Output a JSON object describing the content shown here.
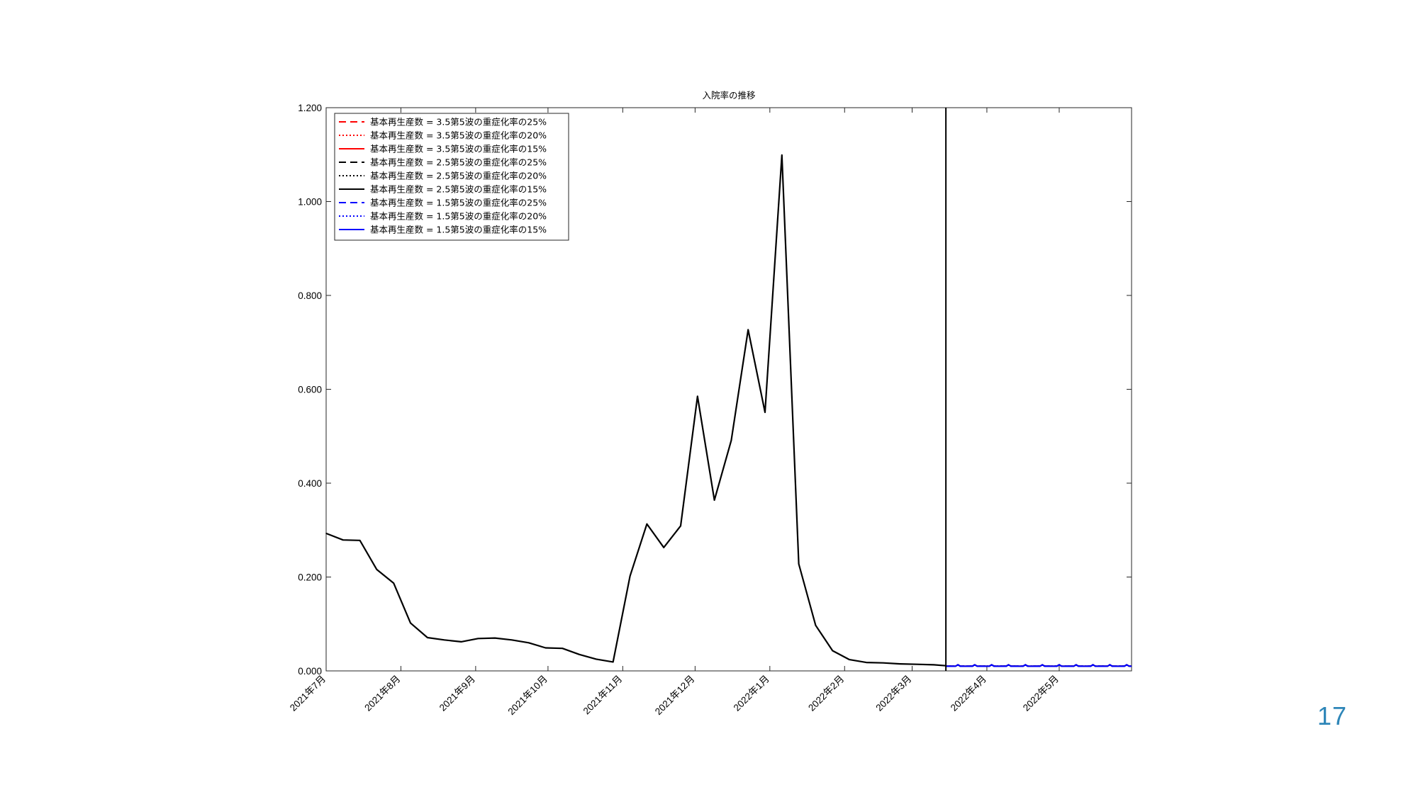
{
  "page": {
    "number": "17"
  },
  "chart_data": {
    "type": "line",
    "title": "入院率の推移",
    "xlabel": "",
    "ylabel": "",
    "ylim": [
      0,
      1.2
    ],
    "x_range": [
      "2021-07-01",
      "2022-05-31"
    ],
    "y_ticks": [
      "0.000",
      "0.200",
      "0.400",
      "0.600",
      "0.800",
      "1.000",
      "1.200"
    ],
    "x_ticks": [
      {
        "date": "2021-07-01",
        "label": "2021年7月"
      },
      {
        "date": "2021-08-01",
        "label": "2021年8月"
      },
      {
        "date": "2021-09-01",
        "label": "2021年9月"
      },
      {
        "date": "2021-10-01",
        "label": "2021年10月"
      },
      {
        "date": "2021-11-01",
        "label": "2021年11月"
      },
      {
        "date": "2021-12-01",
        "label": "2021年12月"
      },
      {
        "date": "2022-01-01",
        "label": "2022年1月"
      },
      {
        "date": "2022-02-01",
        "label": "2022年2月"
      },
      {
        "date": "2022-03-01",
        "label": "2022年3月"
      },
      {
        "date": "2022-04-01",
        "label": "2022年4月"
      },
      {
        "date": "2022-05-01",
        "label": "2022年5月"
      }
    ],
    "vertical_line_date": "2022-03-15",
    "legend_placement": "top-left",
    "grid": false,
    "series": [
      {
        "name": "基本再生産数 = 3.5第5波の重症化率の25%",
        "color": "#ff0000",
        "dash": "dashed"
      },
      {
        "name": "基本再生産数 = 3.5第5波の重症化率の20%",
        "color": "#ff0000",
        "dash": "dotted"
      },
      {
        "name": "基本再生産数 = 3.5第5波の重症化率の15%",
        "color": "#ff0000",
        "dash": "solid"
      },
      {
        "name": "基本再生産数 = 2.5第5波の重症化率の25%",
        "color": "#000000",
        "dash": "dashed"
      },
      {
        "name": "基本再生産数 = 2.5第5波の重症化率の20%",
        "color": "#000000",
        "dash": "dotted"
      },
      {
        "name": "基本再生産数 = 2.5第5波の重症化率の15%",
        "color": "#000000",
        "dash": "solid"
      },
      {
        "name": "基本再生産数 = 1.5第5波の重症化率の25%",
        "color": "#0000ff",
        "dash": "dashed"
      },
      {
        "name": "基本再生産数 = 1.5第5波の重症化率の20%",
        "color": "#0000ff",
        "dash": "dotted"
      },
      {
        "name": "基本再生産数 = 1.5第5波の重症化率の15%",
        "color": "#0000ff",
        "dash": "solid"
      }
    ],
    "observed": {
      "color": "#000000",
      "points": [
        [
          "2021-07-01",
          0.293
        ],
        [
          "2021-07-08",
          0.279
        ],
        [
          "2021-07-15",
          0.278
        ],
        [
          "2021-07-22",
          0.216
        ],
        [
          "2021-07-29",
          0.187
        ],
        [
          "2021-08-05",
          0.102
        ],
        [
          "2021-08-12",
          0.071
        ],
        [
          "2021-08-19",
          0.066
        ],
        [
          "2021-08-26",
          0.062
        ],
        [
          "2021-09-02",
          0.069
        ],
        [
          "2021-09-09",
          0.07
        ],
        [
          "2021-09-16",
          0.066
        ],
        [
          "2021-09-23",
          0.06
        ],
        [
          "2021-09-30",
          0.049
        ],
        [
          "2021-10-07",
          0.048
        ],
        [
          "2021-10-14",
          0.035
        ],
        [
          "2021-10-21",
          0.025
        ],
        [
          "2021-10-28",
          0.019
        ],
        [
          "2021-11-04",
          0.202
        ],
        [
          "2021-11-11",
          0.313
        ],
        [
          "2021-11-18",
          0.263
        ],
        [
          "2021-11-25",
          0.309
        ],
        [
          "2021-12-02",
          0.585
        ],
        [
          "2021-12-09",
          0.364
        ],
        [
          "2021-12-16",
          0.491
        ],
        [
          "2021-12-23",
          0.727
        ],
        [
          "2021-12-30",
          0.551
        ],
        [
          "2022-01-06",
          1.099
        ],
        [
          "2022-01-13",
          0.228
        ],
        [
          "2022-01-20",
          0.097
        ],
        [
          "2022-01-27",
          0.043
        ],
        [
          "2022-02-03",
          0.024
        ],
        [
          "2022-02-10",
          0.018
        ],
        [
          "2022-02-17",
          0.017
        ],
        [
          "2022-02-24",
          0.015
        ],
        [
          "2022-03-03",
          0.014
        ],
        [
          "2022-03-10",
          0.013
        ],
        [
          "2022-03-15",
          0.011
        ]
      ]
    },
    "forecast": {
      "start": "2022-03-15",
      "end": "2022-05-31",
      "base_value": 0.01,
      "peak_value": 0.013
    }
  }
}
